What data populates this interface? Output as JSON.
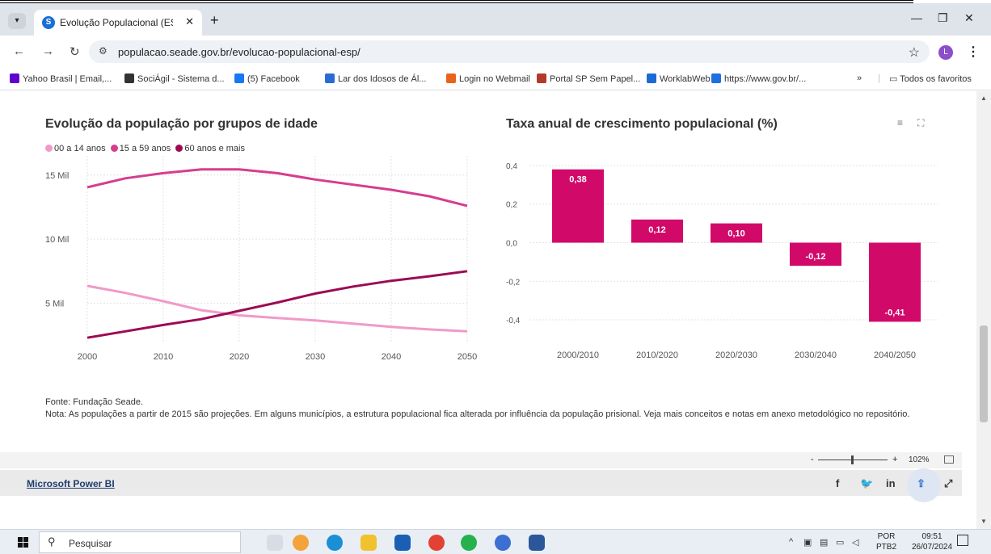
{
  "browser": {
    "tab_title": "Evolução Populacional (ESP) – S",
    "favicon_letter": "S",
    "url": "populacao.seade.gov.br/evolucao-populacional-esp/",
    "profile_initial": "L"
  },
  "bookmarks": [
    {
      "label": "Yahoo Brasil | Email,...",
      "color": "#6001d2"
    },
    {
      "label": "SociÁgil - Sistema d...",
      "color": "#333333"
    },
    {
      "label": "(5) Facebook",
      "color": "#1877f2"
    },
    {
      "label": "Lar dos Idosos de Ál...",
      "color": "#2b6cd4"
    },
    {
      "label": "Login no Webmail",
      "color": "#e8641a"
    },
    {
      "label": "Portal SP Sem Papel...",
      "color": "#b23a2a"
    },
    {
      "label": "WorklabWeb",
      "color": "#1a6bd6"
    },
    {
      "label": "https://www.gov.br/...",
      "color": "#1e6fe0"
    }
  ],
  "bookmarks_more": "»",
  "bookmarks_all": "Todos os favoritos",
  "line_chart_title": "Evolução da população por grupos de idade",
  "bar_chart_title": "Taxa anual de crescimento populacional (%)",
  "legend": [
    {
      "label": "00 a 14 anos",
      "color": "#f09ac8"
    },
    {
      "label": "15 a 59 anos",
      "color": "#d63d8e"
    },
    {
      "label": "60 anos e mais",
      "color": "#9c0a54"
    }
  ],
  "chart_data": [
    {
      "type": "line",
      "title": "Evolução da população por grupos de idade",
      "x": [
        2000,
        2005,
        2010,
        2015,
        2020,
        2025,
        2030,
        2035,
        2040,
        2045,
        2050
      ],
      "series": [
        {
          "name": "00 a 14 anos",
          "color": "#f09ac8",
          "values": [
            6350,
            5800,
            5150,
            4450,
            4050,
            3850,
            3650,
            3400,
            3150,
            2950,
            2800
          ]
        },
        {
          "name": "15 a 59 anos",
          "color": "#d63d8e",
          "values": [
            14050,
            14750,
            15150,
            15450,
            15450,
            15150,
            14650,
            14250,
            13850,
            13350,
            12600
          ]
        },
        {
          "name": "60 anos e mais",
          "color": "#9c0a54",
          "values": [
            2300,
            2800,
            3300,
            3750,
            4400,
            5050,
            5750,
            6300,
            6750,
            7100,
            7500
          ]
        }
      ],
      "yticks": [
        {
          "v": 5000,
          "label": "5 Mil"
        },
        {
          "v": 10000,
          "label": "10 Mil"
        },
        {
          "v": 15000,
          "label": "15 Mil"
        }
      ],
      "xticks": [
        "2000",
        "2010",
        "2020",
        "2030",
        "2040",
        "2050"
      ],
      "xlim": [
        2000,
        2050
      ],
      "ylim": [
        2000,
        16500
      ],
      "grid": true
    },
    {
      "type": "bar",
      "title": "Taxa anual de crescimento populacional (%)",
      "categories": [
        "2000/2010",
        "2010/2020",
        "2020/2030",
        "2030/2040",
        "2040/2050"
      ],
      "values": [
        0.38,
        0.12,
        0.1,
        -0.12,
        -0.41
      ],
      "labels": [
        "0,38",
        "0,12",
        "0,10",
        "-0,12",
        "-0,41"
      ],
      "color": "#d10a6a",
      "yticks": [
        "0,4",
        "0,2",
        "0,0",
        "-0,2",
        "-0,4"
      ],
      "ylim": [
        -0.45,
        0.45
      ],
      "grid": true
    }
  ],
  "note": {
    "source": "Fonte: Fundação Seade.",
    "text": "Nota: As populações a partir de 2015 são projeções. Em alguns municípios, a estrutura populacional fica alterada por influência da população prisional.  Veja mais conceitos e notas em anexo metodológico no repositório."
  },
  "zoom": {
    "minus": "-",
    "plus": "+",
    "value": "102%"
  },
  "powerbi_link": "Microsoft Power BI",
  "taskbar": {
    "search_placeholder": "Pesquisar",
    "lang_top": "POR",
    "lang_bottom": "PTB2",
    "time": "09:51",
    "date": "26/07/2024"
  }
}
